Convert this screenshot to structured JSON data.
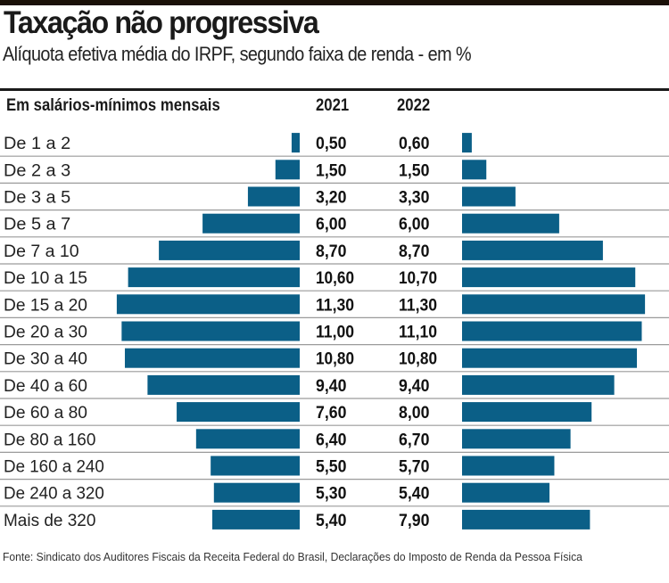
{
  "chart_data": {
    "type": "bar",
    "title": "Taxação não progressiva",
    "subtitle": "Alíquota efetiva média do IRPF, segundo faixa de renda - em %",
    "category_header": "Em salários-mínimos mensais",
    "categories": [
      "De 1 a 2",
      "De 2 a 3",
      "De 3 a 5",
      "De 5 a 7",
      "De 7 a 10",
      "De 10 a 15",
      "De 15 a 20",
      "De 20 a 30",
      "De 30 a 40",
      "De 40 a 60",
      "De 60 a 80",
      "De 80 a 160",
      "De 160 a 240",
      "De 240 a 320",
      "Mais de 320"
    ],
    "series": [
      {
        "name": "2021",
        "values": [
          0.5,
          1.5,
          3.2,
          6.0,
          8.7,
          10.6,
          11.3,
          11.0,
          10.8,
          9.4,
          7.6,
          6.4,
          5.5,
          5.3,
          5.4
        ],
        "labels": [
          "0,50",
          "1,50",
          "3,20",
          "6,00",
          "8,70",
          "10,60",
          "11,30",
          "11,00",
          "10,80",
          "9,40",
          "7,60",
          "6,40",
          "5,50",
          "5,30",
          "5,40"
        ]
      },
      {
        "name": "2022",
        "values": [
          0.6,
          1.5,
          3.3,
          6.0,
          8.7,
          10.7,
          11.3,
          11.1,
          10.8,
          9.4,
          8.0,
          6.7,
          5.7,
          5.4,
          7.9
        ],
        "labels": [
          "0,60",
          "1,50",
          "3,30",
          "6,00",
          "8,70",
          "10,70",
          "11,30",
          "11,10",
          "10,80",
          "9,40",
          "8,00",
          "6,70",
          "5,70",
          "5,40",
          "7,90"
        ]
      }
    ],
    "bar_color": "#0b5f87",
    "layout": "butterfly (2021 bars extend left, 2022 bars extend right)"
  },
  "source": "Fonte: Sindicato dos Auditores Fiscais da Receita Federal do Brasil, Declarações do Imposto de Renda da Pessoa Física"
}
